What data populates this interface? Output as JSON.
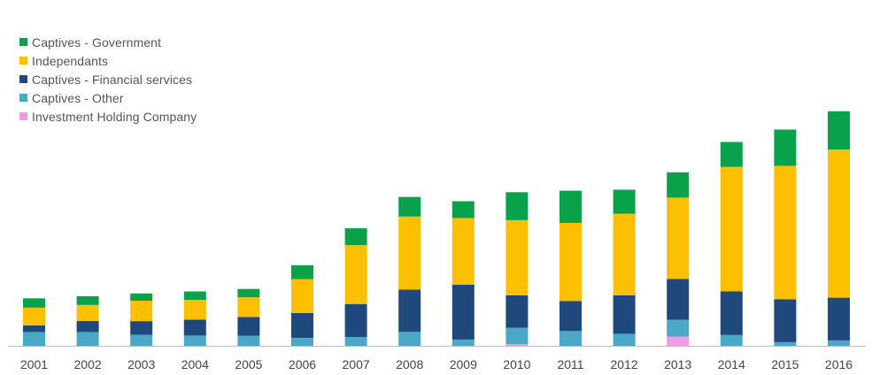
{
  "chart_data": {
    "type": "bar",
    "stacked": true,
    "categories": [
      "2001",
      "2002",
      "2003",
      "2004",
      "2005",
      "2006",
      "2007",
      "2008",
      "2009",
      "2010",
      "2011",
      "2012",
      "2013",
      "2014",
      "2015",
      "2016"
    ],
    "series": [
      {
        "name": "Investment Holding Company",
        "color": "#f19be5",
        "values": [
          0,
          0,
          0,
          0,
          0,
          0,
          0,
          0,
          0,
          0.06,
          0,
          0,
          0.31,
          0,
          0,
          0
        ]
      },
      {
        "name": "Captives - Other",
        "color": "#4aa8c6",
        "values": [
          0.46,
          0.46,
          0.36,
          0.34,
          0.34,
          0.26,
          0.29,
          0.46,
          0.21,
          0.54,
          0.49,
          0.4,
          0.55,
          0.36,
          0.12,
          0.18
        ]
      },
      {
        "name": "Captives - Financial services",
        "color": "#1f497d",
        "values": [
          0.22,
          0.37,
          0.46,
          0.53,
          0.62,
          0.83,
          1.1,
          1.41,
          1.82,
          1.08,
          1.0,
          1.28,
          1.36,
          1.45,
          1.43,
          1.42
        ]
      },
      {
        "name": "Independants",
        "color": "#fcc000",
        "values": [
          0.59,
          0.53,
          0.68,
          0.66,
          0.65,
          1.13,
          1.96,
          2.43,
          2.22,
          2.5,
          2.6,
          2.71,
          2.71,
          4.14,
          4.43,
          4.93
        ]
      },
      {
        "name": "Captives - Government",
        "color": "#0aa14b",
        "values": [
          0.31,
          0.29,
          0.24,
          0.28,
          0.28,
          0.46,
          0.56,
          0.65,
          0.56,
          0.93,
          1.07,
          0.8,
          0.84,
          0.83,
          1.21,
          1.27
        ]
      }
    ],
    "legend": [
      "Captives - Government",
      "Independants",
      "Captives - Financial services",
      "Captives - Other",
      "Investment Holding Company"
    ],
    "legend_position": "top-left",
    "ylim": [
      0,
      8
    ],
    "y_axis_visible": false,
    "grid": false
  }
}
